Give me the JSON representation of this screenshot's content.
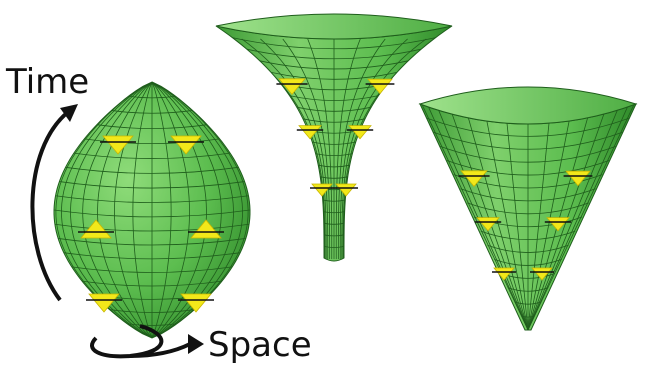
{
  "labels": {
    "time": "Time",
    "space": "Space"
  },
  "colors": {
    "surface": "#5cbd4f",
    "surface_dark": "#2f8a2a",
    "grid": "#1f5e1c",
    "marker": "#f2e81a",
    "marker_shadow": "#c9b600",
    "arrow": "#111111"
  },
  "figures": [
    "closed-universe-egg",
    "trumpet-universe",
    "cone-universe"
  ]
}
